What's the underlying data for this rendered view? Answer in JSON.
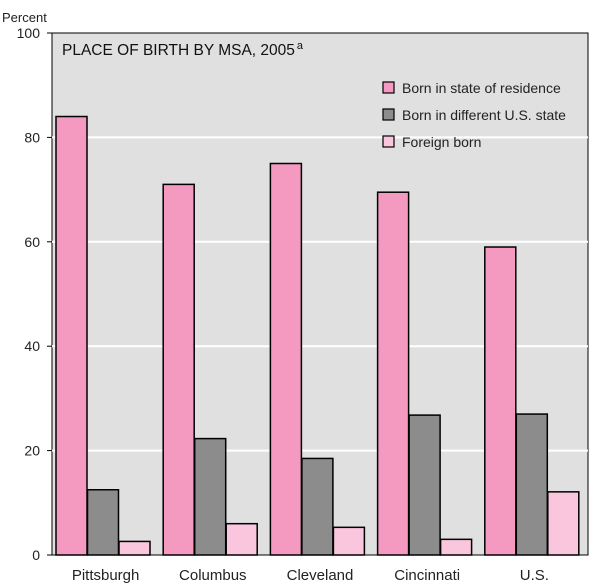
{
  "chart_data": {
    "type": "bar",
    "title": "PLACE OF BIRTH BY MSA, 2005",
    "title_superscript": "a",
    "ylabel": "Percent",
    "xlabel": "",
    "ylim": [
      0,
      100
    ],
    "yticks": [
      0,
      20,
      40,
      60,
      80,
      100
    ],
    "grid": true,
    "legend_position": "top-right",
    "categories": [
      "Pittsburgh",
      "Columbus",
      "Cleveland",
      "Cincinnati",
      "U.S."
    ],
    "series": [
      {
        "name": "Born in state of residence",
        "color": "#f49ac1",
        "values": [
          84,
          71,
          75,
          69.5,
          59
        ]
      },
      {
        "name": "Born in different U.S. state",
        "color": "#8c8c8c",
        "values": [
          12.5,
          22.3,
          18.5,
          26.8,
          27
        ]
      },
      {
        "name": "Foreign born",
        "color": "#f9c6dd",
        "values": [
          2.6,
          6,
          5.3,
          3,
          12.1
        ]
      }
    ]
  },
  "colors": {
    "plot_background": "#e0e0e0",
    "gridline": "#ffffff",
    "bar_outline": "#000000"
  }
}
